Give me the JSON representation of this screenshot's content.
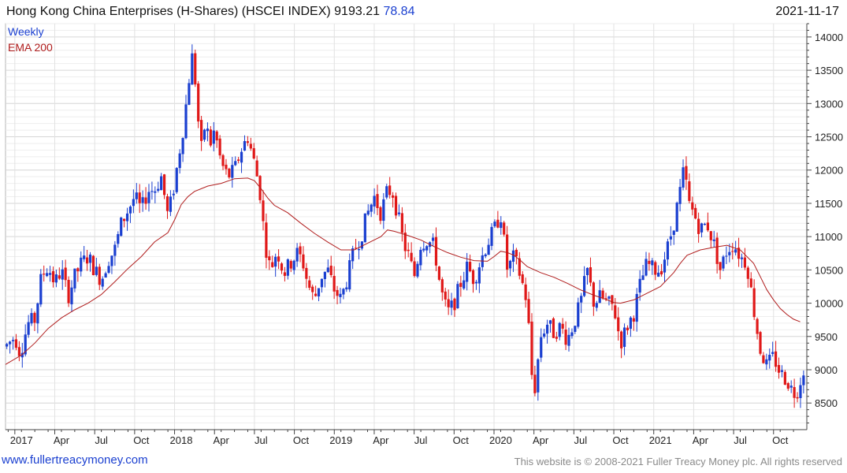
{
  "header": {
    "title": "Hong Kong China Enterprises (H-Shares) (HSCEI INDEX) 9193.21",
    "change": "78.84",
    "date": "2021-11-17"
  },
  "footer": {
    "link": "www.fullertreacymoney.com",
    "copyright": "This website is © 2008-2021 Fuller Treacy Money plc. All rights reserved"
  },
  "colors": {
    "up": "#1a3fd0",
    "down": "#e01818",
    "ema": "#b01c1c",
    "grid": "#dcdcdc",
    "axis": "#444444"
  },
  "chart_data": {
    "type": "candlestick",
    "period": "Weekly",
    "legend": [
      "Weekly",
      "EMA 200"
    ],
    "ylim": [
      8100,
      14200
    ],
    "y_ticks": [
      8500,
      9000,
      9500,
      10000,
      10500,
      11000,
      11500,
      12000,
      12500,
      13000,
      13500,
      14000
    ],
    "x_tick_labels": [
      {
        "label": "2017",
        "t": 0.5
      },
      {
        "label": "Apr",
        "t": 3.5
      },
      {
        "label": "Jul",
        "t": 6.5
      },
      {
        "label": "Oct",
        "t": 9.5
      },
      {
        "label": "2018",
        "t": 12.5
      },
      {
        "label": "Apr",
        "t": 15.5
      },
      {
        "label": "Jul",
        "t": 18.5
      },
      {
        "label": "Oct",
        "t": 21.5
      },
      {
        "label": "2019",
        "t": 24.5
      },
      {
        "label": "Apr",
        "t": 27.5
      },
      {
        "label": "Jul",
        "t": 30.5
      },
      {
        "label": "Oct",
        "t": 33.5
      },
      {
        "label": "2020",
        "t": 36.5
      },
      {
        "label": "Apr",
        "t": 39.5
      },
      {
        "label": "Jul",
        "t": 42.5
      },
      {
        "label": "Oct",
        "t": 45.5
      },
      {
        "label": "2021",
        "t": 48.5
      },
      {
        "label": "Apr",
        "t": 51.5
      },
      {
        "label": "Jul",
        "t": 54.5
      },
      {
        "label": "Oct",
        "t": 57.5
      }
    ],
    "t_range": [
      -0.7,
      59.5
    ],
    "price_path": [
      [
        -0.7,
        9350
      ],
      [
        0.0,
        9500
      ],
      [
        0.4,
        9250
      ],
      [
        1.0,
        9700
      ],
      [
        1.5,
        9750
      ],
      [
        2.0,
        10400
      ],
      [
        2.5,
        10550
      ],
      [
        3.0,
        10300
      ],
      [
        3.5,
        10500
      ],
      [
        4.0,
        10100
      ],
      [
        4.5,
        10400
      ],
      [
        5.0,
        10600
      ],
      [
        5.5,
        10700
      ],
      [
        6.0,
        10500
      ],
      [
        6.5,
        10350
      ],
      [
        7.0,
        10650
      ],
      [
        7.5,
        10800
      ],
      [
        8.0,
        11200
      ],
      [
        8.5,
        11400
      ],
      [
        9.0,
        11600
      ],
      [
        9.5,
        11400
      ],
      [
        10.0,
        11700
      ],
      [
        10.5,
        11700
      ],
      [
        11.0,
        11900
      ],
      [
        11.5,
        11300
      ],
      [
        12.0,
        11800
      ],
      [
        12.3,
        12200
      ],
      [
        12.7,
        12700
      ],
      [
        13.1,
        13400
      ],
      [
        13.4,
        13800
      ],
      [
        13.7,
        12900
      ],
      [
        14.0,
        12300
      ],
      [
        14.3,
        12700
      ],
      [
        14.7,
        12400
      ],
      [
        15.0,
        12600
      ],
      [
        15.5,
        12100
      ],
      [
        16.0,
        11900
      ],
      [
        16.5,
        12000
      ],
      [
        17.0,
        12300
      ],
      [
        17.5,
        12500
      ],
      [
        18.0,
        12100
      ],
      [
        18.4,
        11700
      ],
      [
        18.8,
        10900
      ],
      [
        19.2,
        10500
      ],
      [
        19.7,
        10800
      ],
      [
        20.2,
        10450
      ],
      [
        20.7,
        10600
      ],
      [
        21.2,
        10750
      ],
      [
        21.6,
        10650
      ],
      [
        22.0,
        10300
      ],
      [
        22.5,
        10050
      ],
      [
        23.0,
        10400
      ],
      [
        23.5,
        10500
      ],
      [
        24.0,
        10200
      ],
      [
        24.5,
        10050
      ],
      [
        25.0,
        10400
      ],
      [
        25.5,
        10800
      ],
      [
        26.0,
        11000
      ],
      [
        26.5,
        11350
      ],
      [
        27.0,
        11600
      ],
      [
        27.5,
        11350
      ],
      [
        28.0,
        11700
      ],
      [
        28.4,
        11650
      ],
      [
        28.8,
        11300
      ],
      [
        29.2,
        10900
      ],
      [
        29.6,
        10700
      ],
      [
        30.0,
        10400
      ],
      [
        30.5,
        10900
      ],
      [
        31.0,
        10950
      ],
      [
        31.5,
        10850
      ],
      [
        32.0,
        10200
      ],
      [
        32.5,
        9850
      ],
      [
        33.0,
        10000
      ],
      [
        33.5,
        10300
      ],
      [
        34.0,
        10550
      ],
      [
        34.5,
        10350
      ],
      [
        35.0,
        10650
      ],
      [
        35.5,
        10900
      ],
      [
        36.0,
        11100
      ],
      [
        36.5,
        11350
      ],
      [
        37.0,
        10500
      ],
      [
        37.5,
        10700
      ],
      [
        38.0,
        10400
      ],
      [
        38.5,
        10000
      ],
      [
        38.8,
        9000
      ],
      [
        39.0,
        8600
      ],
      [
        39.5,
        9500
      ],
      [
        40.0,
        9700
      ],
      [
        40.5,
        9550
      ],
      [
        41.0,
        9650
      ],
      [
        41.5,
        9450
      ],
      [
        42.0,
        9700
      ],
      [
        42.5,
        10000
      ],
      [
        43.0,
        10500
      ],
      [
        43.5,
        10000
      ],
      [
        44.0,
        10100
      ],
      [
        44.5,
        10000
      ],
      [
        45.0,
        9950
      ],
      [
        45.5,
        9400
      ],
      [
        46.0,
        9650
      ],
      [
        46.5,
        9850
      ],
      [
        47.0,
        10300
      ],
      [
        47.5,
        10600
      ],
      [
        48.0,
        10500
      ],
      [
        48.5,
        10500
      ],
      [
        49.0,
        10800
      ],
      [
        49.5,
        11200
      ],
      [
        50.0,
        11700
      ],
      [
        50.3,
        12050
      ],
      [
        50.6,
        11500
      ],
      [
        51.0,
        11350
      ],
      [
        51.5,
        11100
      ],
      [
        52.0,
        11200
      ],
      [
        52.5,
        10900
      ],
      [
        53.0,
        10500
      ],
      [
        53.5,
        10800
      ],
      [
        54.0,
        10900
      ],
      [
        54.5,
        10700
      ],
      [
        55.0,
        10600
      ],
      [
        55.3,
        10200
      ],
      [
        55.6,
        9800
      ],
      [
        56.0,
        9300
      ],
      [
        56.5,
        9050
      ],
      [
        57.0,
        9200
      ],
      [
        57.5,
        8950
      ],
      [
        58.0,
        8850
      ],
      [
        58.5,
        8650
      ],
      [
        58.8,
        8700
      ],
      [
        59.1,
        8900
      ],
      [
        59.5,
        9200
      ]
    ],
    "ema_200": [
      [
        -0.7,
        9080
      ],
      [
        0.5,
        9220
      ],
      [
        1.5,
        9400
      ],
      [
        2.5,
        9620
      ],
      [
        3.5,
        9780
      ],
      [
        4.5,
        9900
      ],
      [
        5.5,
        10000
      ],
      [
        6.5,
        10130
      ],
      [
        7.5,
        10320
      ],
      [
        8.5,
        10520
      ],
      [
        9.5,
        10700
      ],
      [
        10.5,
        10920
      ],
      [
        11.5,
        11060
      ],
      [
        12.0,
        11250
      ],
      [
        12.5,
        11480
      ],
      [
        13.0,
        11600
      ],
      [
        13.5,
        11680
      ],
      [
        14.5,
        11760
      ],
      [
        15.5,
        11800
      ],
      [
        16.5,
        11870
      ],
      [
        17.5,
        11880
      ],
      [
        18.0,
        11840
      ],
      [
        18.5,
        11720
      ],
      [
        19.0,
        11580
      ],
      [
        19.5,
        11470
      ],
      [
        20.5,
        11360
      ],
      [
        21.5,
        11200
      ],
      [
        22.5,
        11050
      ],
      [
        23.5,
        10920
      ],
      [
        24.5,
        10800
      ],
      [
        25.5,
        10800
      ],
      [
        26.5,
        10900
      ],
      [
        27.5,
        11000
      ],
      [
        28.0,
        11100
      ],
      [
        28.5,
        11080
      ],
      [
        29.5,
        11020
      ],
      [
        30.5,
        10950
      ],
      [
        31.5,
        10850
      ],
      [
        32.5,
        10760
      ],
      [
        33.5,
        10690
      ],
      [
        34.5,
        10640
      ],
      [
        35.5,
        10630
      ],
      [
        36.0,
        10700
      ],
      [
        36.5,
        10780
      ],
      [
        37.0,
        10760
      ],
      [
        37.5,
        10720
      ],
      [
        38.0,
        10640
      ],
      [
        38.5,
        10550
      ],
      [
        39.5,
        10460
      ],
      [
        40.5,
        10390
      ],
      [
        41.5,
        10300
      ],
      [
        42.5,
        10200
      ],
      [
        43.5,
        10120
      ],
      [
        44.5,
        10050
      ],
      [
        45.0,
        10010
      ],
      [
        45.5,
        10000
      ],
      [
        46.5,
        10050
      ],
      [
        47.5,
        10150
      ],
      [
        48.5,
        10250
      ],
      [
        49.5,
        10460
      ],
      [
        50.0,
        10600
      ],
      [
        50.5,
        10720
      ],
      [
        51.5,
        10800
      ],
      [
        52.5,
        10840
      ],
      [
        53.5,
        10870
      ],
      [
        54.5,
        10800
      ],
      [
        55.5,
        10600
      ],
      [
        56.0,
        10400
      ],
      [
        56.5,
        10200
      ],
      [
        57.0,
        10050
      ],
      [
        57.5,
        9920
      ],
      [
        58.0,
        9830
      ],
      [
        58.5,
        9760
      ],
      [
        59.0,
        9720
      ]
    ]
  }
}
